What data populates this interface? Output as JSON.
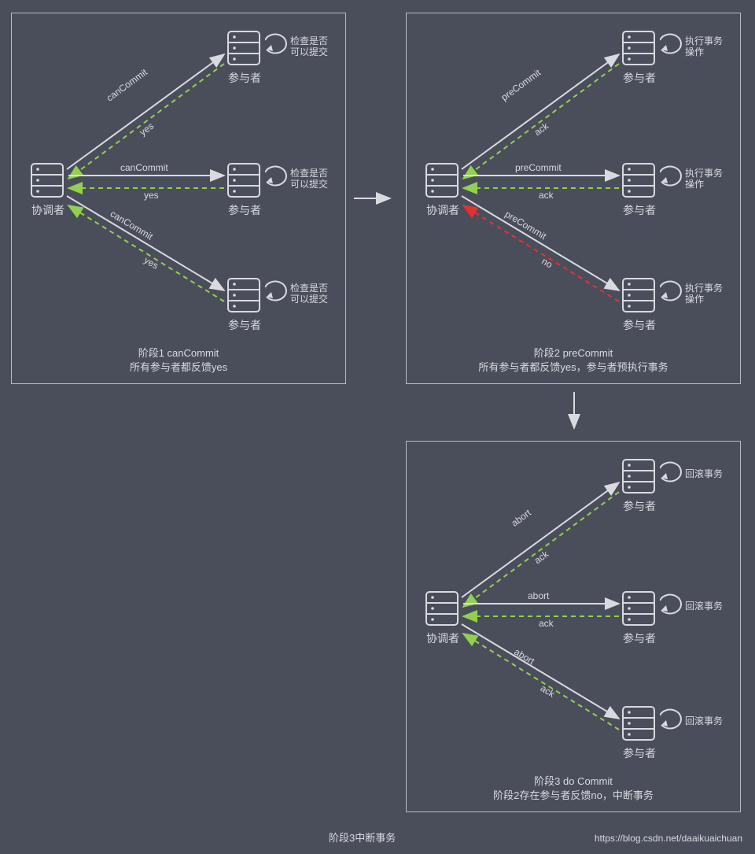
{
  "colors": {
    "bg": "#4a4e5a",
    "stroke": "#d8dae0",
    "green": "#92d050",
    "red": "#e83030",
    "text": "#d8dae0"
  },
  "labels": {
    "coordinator": "协调者",
    "participant": "参与者",
    "check": "检查是否\n可以提交",
    "exec": "执行事务\n操作",
    "rollback": "回滚事务"
  },
  "panels": {
    "p1": {
      "send": "canCommit",
      "reply": "yes",
      "caption1": "阶段1 canCommit",
      "caption2": "所有参与者都反馈yes"
    },
    "p2": {
      "send": "preCommit",
      "reply_ack": "ack",
      "reply_no": "no",
      "caption1": "阶段2 preCommit",
      "caption2": "所有参与者都反馈yes，参与者预执行事务"
    },
    "p3": {
      "send": "abort",
      "reply": "ack",
      "caption1": "阶段3 do Commit",
      "caption2": "阶段2存在参与者反馈no，中断事务"
    }
  },
  "footer": {
    "title": "阶段3中断事务",
    "credit": "https://blog.csdn.net/daaikuaichuan"
  }
}
